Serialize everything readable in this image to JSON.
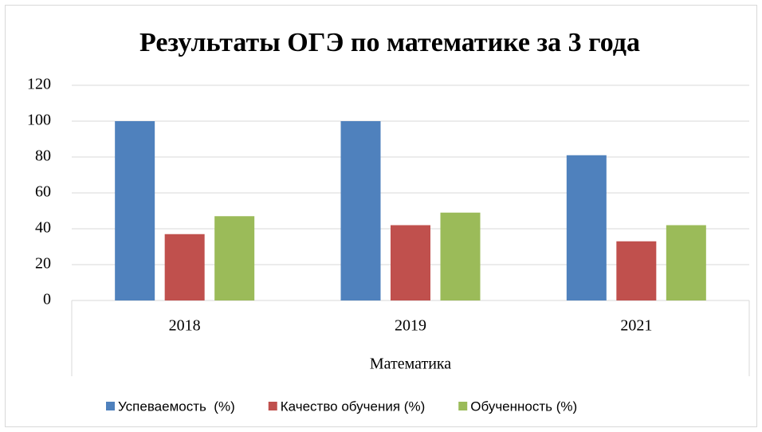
{
  "chart_data": {
    "type": "bar",
    "title": "Результаты ОГЭ по математике за 3 года",
    "x_label": "Математика",
    "categories": [
      "2018",
      "2019",
      "2021"
    ],
    "series": [
      {
        "name": "Успеваемость  (%)",
        "color": "#4f81bd",
        "values": [
          100,
          100,
          81
        ]
      },
      {
        "name": "Качество обучения (%)",
        "color": "#c0504d",
        "values": [
          37,
          42,
          33
        ]
      },
      {
        "name": "Обученность (%)",
        "color": "#9bbb59",
        "values": [
          47,
          49,
          42
        ]
      }
    ],
    "ylim": [
      0,
      120
    ],
    "yticks": [
      0,
      20,
      40,
      60,
      80,
      100,
      120
    ],
    "grid": true,
    "legend": "bottom"
  }
}
